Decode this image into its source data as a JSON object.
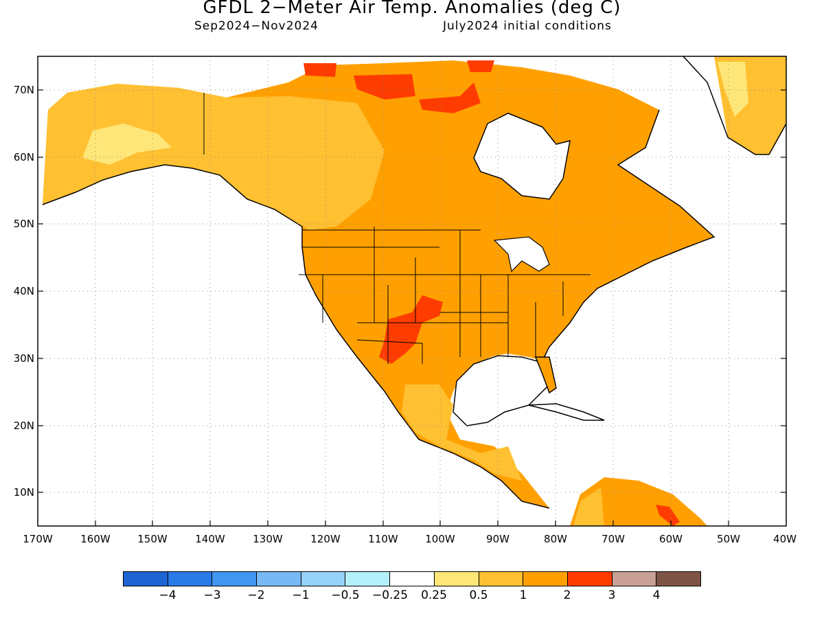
{
  "title": "GFDL 2−Meter Air Temp. Anomalies (deg C)",
  "subtitle_left": "Sep2024−Nov2024",
  "subtitle_right": "July2024 initial conditions",
  "map": {
    "lon_range": [
      -170,
      -40
    ],
    "lat_range": [
      5,
      75
    ],
    "lat_ticks": [
      "70N",
      "60N",
      "50N",
      "40N",
      "30N",
      "20N",
      "10N"
    ],
    "lon_ticks": [
      "170W",
      "160W",
      "150W",
      "140W",
      "130W",
      "120W",
      "110W",
      "100W",
      "90W",
      "80W",
      "70W",
      "60W",
      "50W",
      "40W"
    ],
    "grid": "dotted",
    "ocean_color": "#ffffff"
  },
  "legend": {
    "colors": [
      "#1e64d2",
      "#2a7ae8",
      "#4196f0",
      "#78b9f5",
      "#96d2fa",
      "#b4f0fa",
      "#ffffff",
      "#ffe678",
      "#ffc032",
      "#ffa000",
      "#ff3c00",
      "#c8a096",
      "#7d5446"
    ],
    "labels": [
      "−4",
      "−3",
      "−2",
      "−1",
      "−0.5",
      "−0.25",
      "0.25",
      "0.5",
      "1",
      "2",
      "3",
      "4"
    ]
  },
  "anomaly_colors": {
    "weak": "#ffe678",
    "moderate": "#ffc032",
    "strong": "#ffa000",
    "very_strong": "#ff3c00"
  }
}
